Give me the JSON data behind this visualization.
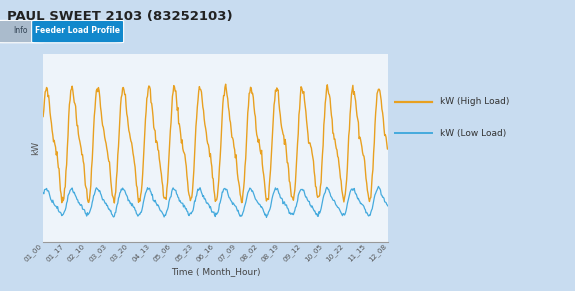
{
  "title": "PAUL SWEET 2103 (83252103)",
  "tab1_label": "Info",
  "tab2_label": "Feeder Load Profile",
  "ylabel": "kW",
  "xlabel": "Time ( Month_Hour)",
  "legend_high": "kW (High Load)",
  "legend_low": "kW (Low Load)",
  "color_high": "#E8A020",
  "color_low": "#45AADD",
  "color_bg_outer": "#C8DCF0",
  "color_bg_inner": "#DCE9F5",
  "color_plot_bg": "#EEF4FA",
  "color_grid": "#BBCCDD",
  "color_title": "#222222",
  "color_tab_active": "#1188CC",
  "color_tab_inactive": "#AABBCC",
  "xtick_labels": [
    "01_00",
    "01_17",
    "02_10",
    "03_03",
    "03_20",
    "04_13",
    "05_06",
    "05_23",
    "06_16",
    "07_09",
    "08_02",
    "08_19",
    "09_12",
    "10_05",
    "10_22",
    "11_15",
    "12_08"
  ],
  "n_points": 500,
  "high_base": 0.52,
  "high_amp": 0.25,
  "low_base": 0.22,
  "low_amp": 0.06
}
